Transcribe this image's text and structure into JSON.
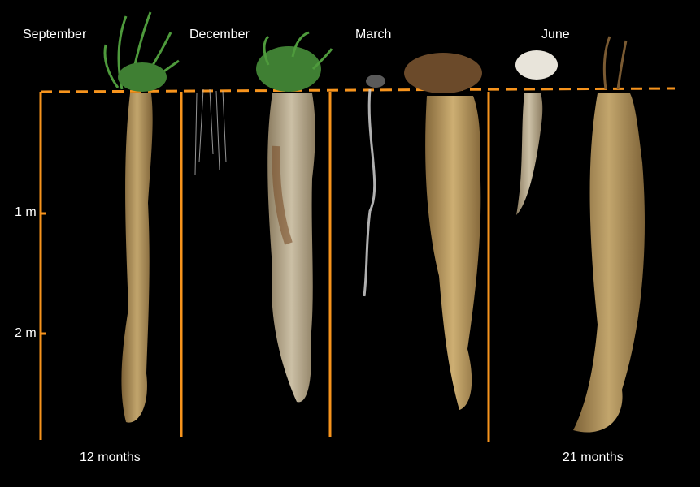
{
  "figure": {
    "seasons": [
      "September",
      "December",
      "March",
      "June"
    ],
    "depth_marks": [
      "1 m",
      "2 m"
    ],
    "durations": [
      "12 months",
      "21 months"
    ],
    "colors": {
      "background": "#000000",
      "guide": "#F7941D",
      "root": "#C9A86A",
      "foliage": "#4E9A3C"
    }
  }
}
